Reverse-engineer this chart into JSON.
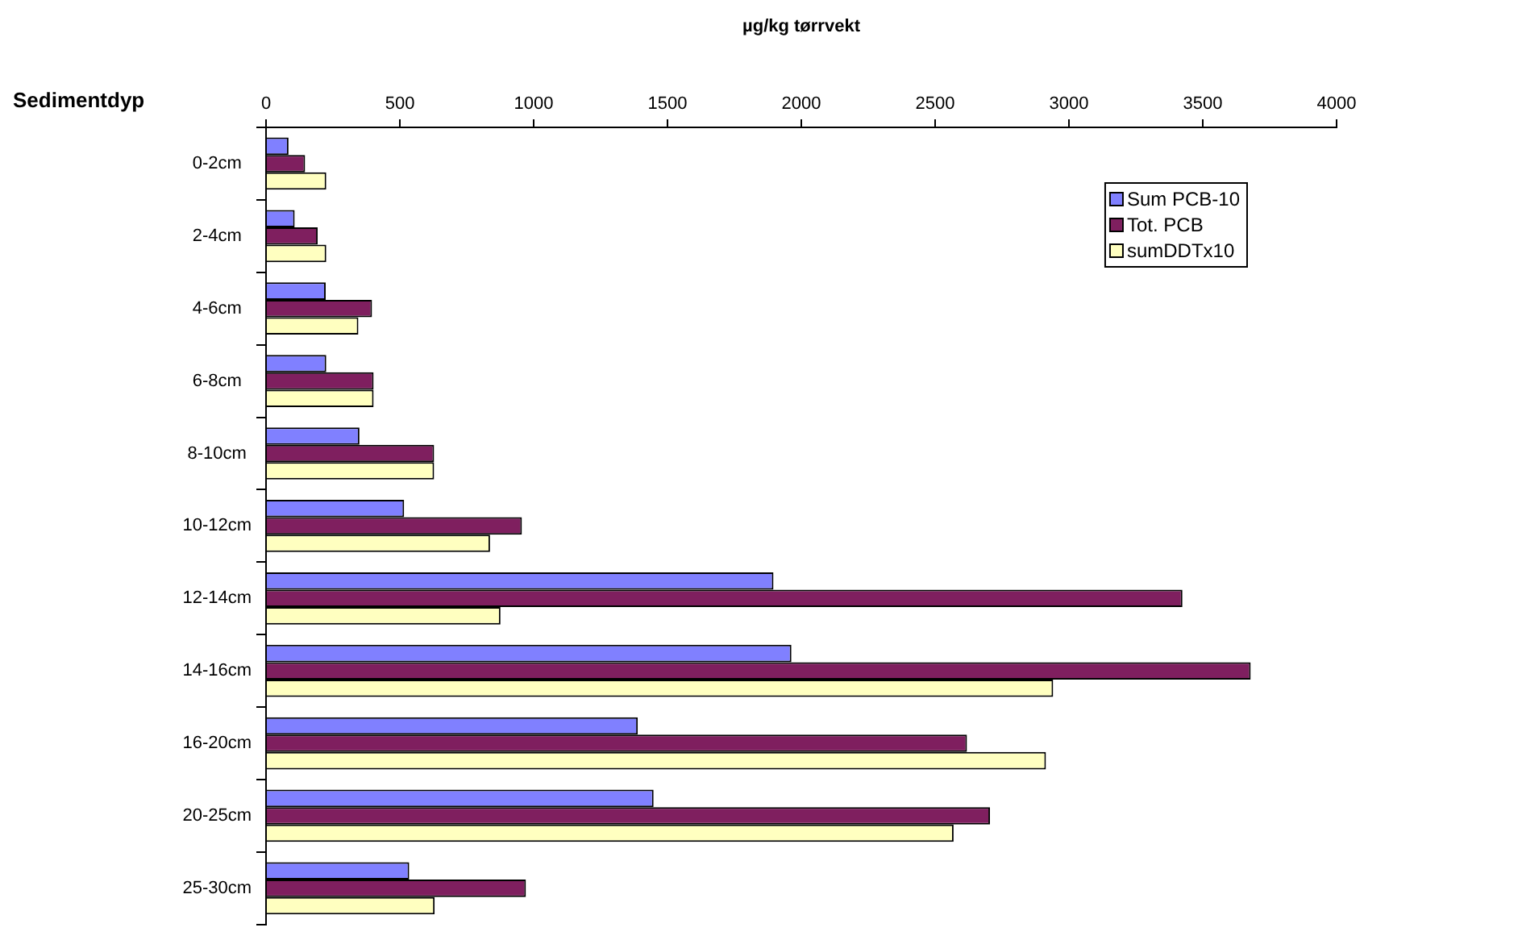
{
  "chart_data": {
    "type": "bar",
    "orientation": "horizontal",
    "xlabel": "µg/kg tørrvekt",
    "ylabel": "Sedimentdyp",
    "categories": [
      "0-2cm",
      "2-4cm",
      "4-6cm",
      "6-8cm",
      "8-10cm",
      "10-12cm",
      "12-14cm",
      "14-16cm",
      "16-20cm",
      "20-25cm",
      "25-30cm"
    ],
    "series": [
      {
        "name": "Sum PCB-10",
        "color": "#8080ff",
        "values": [
          84,
          107,
          223,
          225,
          349,
          516,
          1896,
          1963,
          1389,
          1448,
          535
        ]
      },
      {
        "name": "Tot. PCB",
        "color": "#7f1f5f",
        "values": [
          146,
          193,
          396,
          402,
          628,
          956,
          3424,
          3679,
          2619,
          2705,
          971
        ]
      },
      {
        "name": "sumDDTx10",
        "color": "#ffffc0",
        "values": [
          225,
          225,
          345,
          402,
          628,
          837,
          876,
          2941,
          2914,
          2569,
          630
        ]
      }
    ],
    "xlim": [
      0,
      4000
    ],
    "xticks": [
      0,
      500,
      1000,
      1500,
      2000,
      2500,
      3000,
      3500,
      4000
    ],
    "grid": false,
    "legend": "top right"
  }
}
